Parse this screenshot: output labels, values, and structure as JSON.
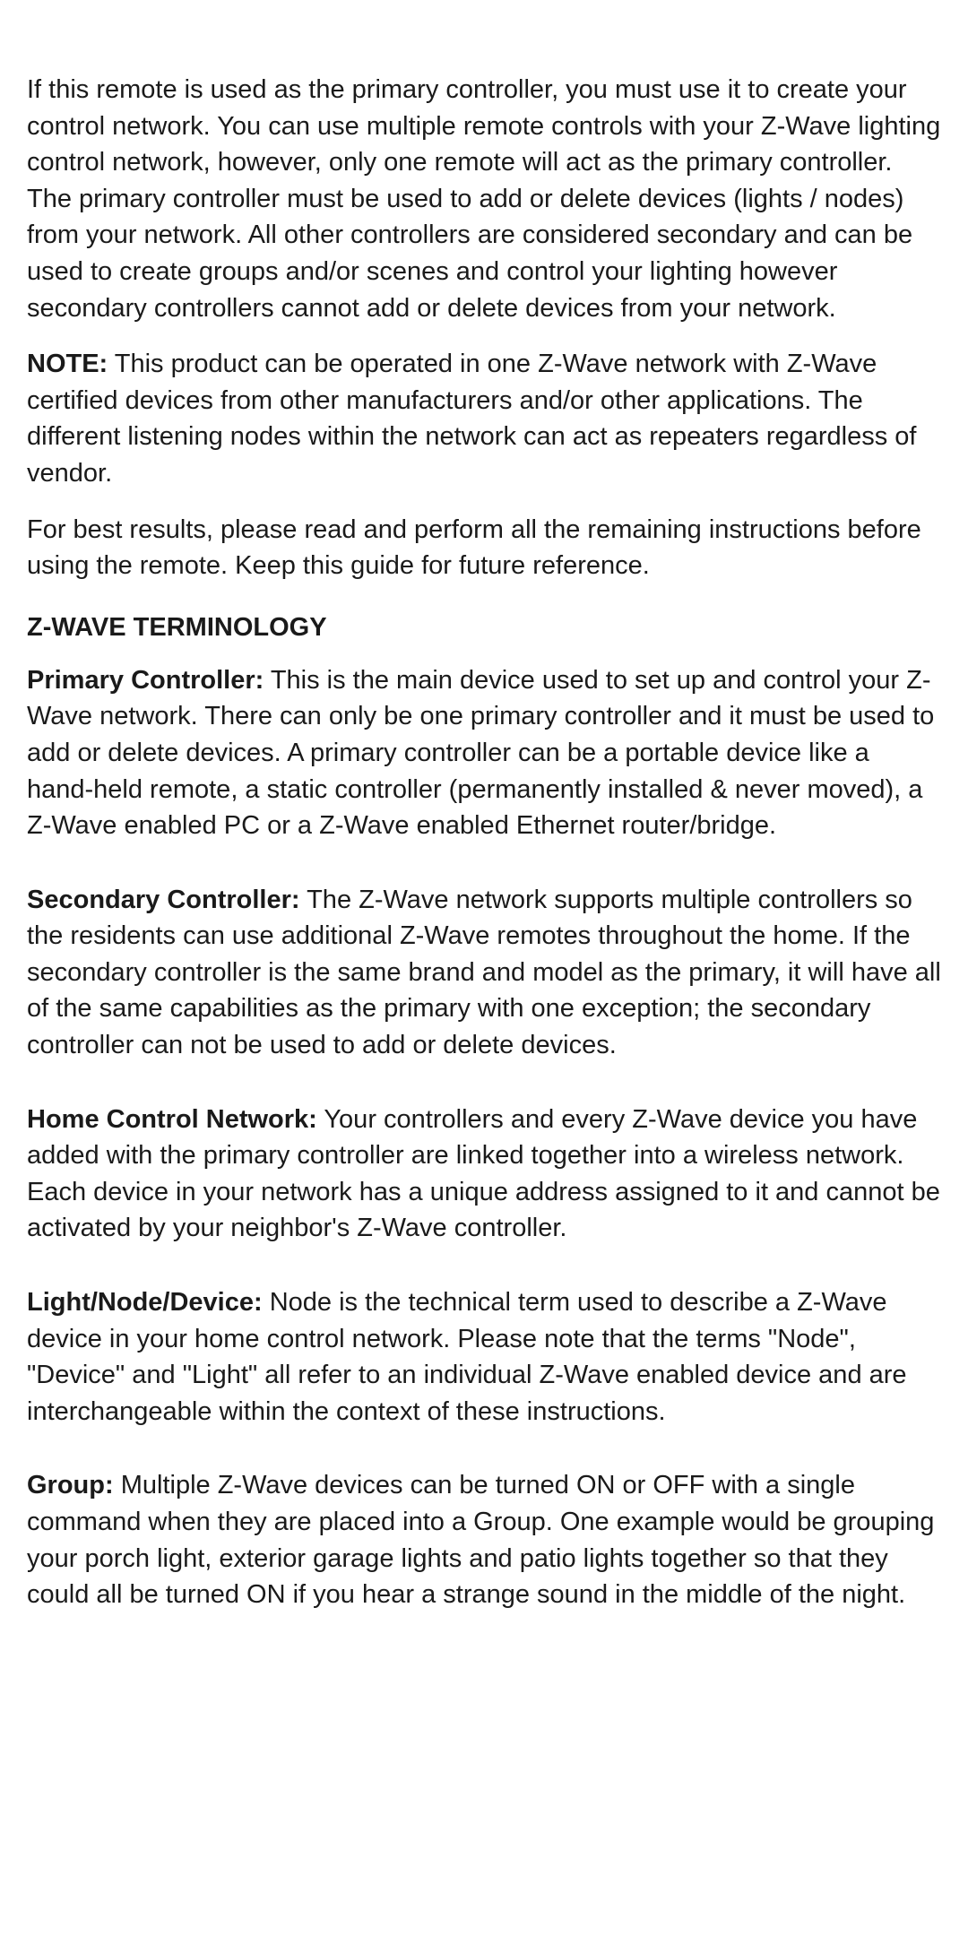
{
  "colors": {
    "background": "#ffffff",
    "text": "#1a1a1a"
  },
  "typography": {
    "body_fontsize": 29,
    "heading_fontsize": 29,
    "line_height": 1.4,
    "font_family": "Arial, Helvetica, sans-serif"
  },
  "paragraphs": {
    "intro": "If this remote is used as the primary controller, you must use it to create your control network. You can use multiple remote controls with your Z-Wave lighting control network, however, only one remote will act as the primary controller. The primary controller must be used to add or delete devices (lights / nodes) from your network. All other controllers are considered secondary and can be used to create groups and/or scenes and control your lighting however secondary controllers cannot add or delete devices from your network.",
    "note_label": "NOTE:",
    "note_text": " This product can be operated in one Z-Wave network with Z-Wave certified devices from other manufacturers and/or other applications. The different listening nodes within the network can act as repeaters regardless of vendor.",
    "best_results": "For best results, please read and perform all the remaining instructions before using the remote. Keep this guide for future reference."
  },
  "heading": "Z-WAVE TERMINOLOGY",
  "terms": [
    {
      "label": "Primary Controller:",
      "text": "  This is the main device used to set up and control your Z-Wave network.  There can only be one primary controller and it must be used to add or delete devices.  A primary controller can be a portable device like a hand-held remote, a static controller (permanently installed & never moved), a Z-Wave enabled PC or a Z-Wave enabled Ethernet router/bridge."
    },
    {
      "label": "Secondary Controller:",
      "text": "  The Z-Wave network supports multiple controllers so the residents can use additional Z-Wave remotes throughout the home.  If the secondary controller is the same brand and model as the primary, it will have all of the same capabilities as the primary with one exception; the secondary controller can not be used to add or delete devices."
    },
    {
      "label": "Home Control Network:",
      "text": "  Your controllers and every Z-Wave device you have added with the primary controller are linked together into a wireless network.  Each device in your network has a unique address assigned to it and cannot be activated by your neighbor's Z-Wave controller."
    },
    {
      "label": "Light/Node/Device:",
      "text": "  Node is the technical term used to describe a Z-Wave device in your home control network.  Please note that the terms \"Node\", \"Device\" and \"Light\" all refer to an individual Z-Wave enabled device and are interchangeable within the context of these instructions."
    },
    {
      "label": "Group:",
      "text": "  Multiple Z-Wave devices can be turned ON or OFF with a single command when they are placed into a Group.  One example would be grouping your porch light, exterior garage lights and patio lights together so that they could all be turned ON if you hear a strange sound in the middle of the night."
    }
  ]
}
